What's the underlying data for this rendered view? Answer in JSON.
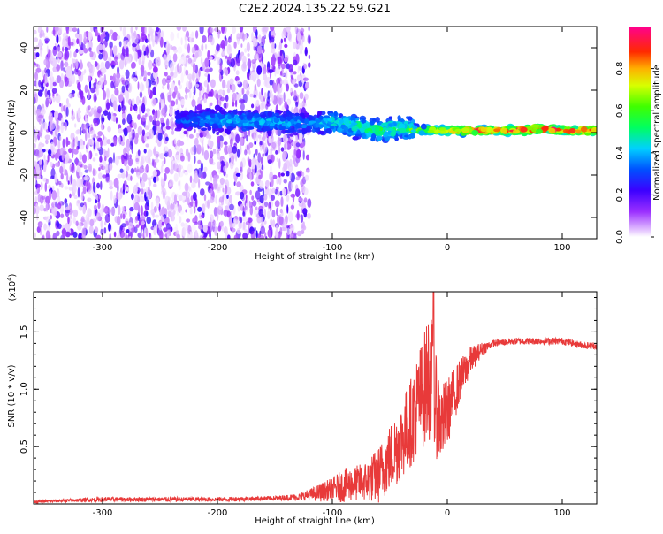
{
  "page_title": "C2E2.2024.135.22.59.G21",
  "chart_data": [
    {
      "type": "heatmap",
      "title": "C2E2.2024.135.22.59.G21",
      "xlabel": "Height of straight line (km)",
      "ylabel": "Frequency (Hz)",
      "xlim": [
        -360,
        130
      ],
      "ylim": [
        -50,
        50
      ],
      "xticks": [
        -300,
        -200,
        -100,
        0,
        100
      ],
      "yticks": [
        -40,
        -20,
        0,
        20,
        40
      ],
      "colorbar": {
        "label": "Normalized spectral amplitude",
        "range": [
          0,
          1
        ],
        "ticks": [
          0.0,
          0.2,
          0.4,
          0.6,
          0.8
        ],
        "colormap": "rainbow (white-violet-blue-cyan-green-yellow-red-magenta)"
      },
      "ridge": {
        "description": "main frequency band vs height",
        "x": [
          -230,
          -200,
          -150,
          -120,
          -100,
          -80,
          -60,
          -40,
          -20,
          0,
          20,
          40,
          60,
          80,
          100,
          130
        ],
        "center_hz": [
          6,
          6,
          5,
          4,
          5,
          3,
          1,
          2,
          1,
          1,
          1,
          1,
          1,
          2,
          1,
          1
        ],
        "peak_amplitude": [
          0.35,
          0.45,
          0.45,
          0.4,
          0.5,
          0.55,
          0.6,
          0.55,
          0.75,
          0.9,
          0.95,
          0.95,
          0.95,
          0.98,
          0.95,
          0.95
        ]
      },
      "noise_region": {
        "x_from": -360,
        "x_to": -130,
        "character": "broadband scattered amplitude across full frequency range"
      }
    },
    {
      "type": "line",
      "xlabel": "Height of straight line (km)",
      "ylabel": "SNR (10 * v/v)",
      "y_multiplier_label": "(x10",
      "y_multiplier_exp": "4",
      "y_multiplier_close": ")",
      "xlim": [
        -360,
        130
      ],
      "ylim": [
        0,
        1.85
      ],
      "xticks": [
        -300,
        -200,
        -100,
        0,
        100
      ],
      "yticks": [
        0.5,
        1.0,
        1.5
      ],
      "ytick_labels": [
        "0.5",
        "1.0",
        "1.5"
      ],
      "color": "#e83a3a",
      "series": [
        {
          "x": [
            -360,
            -300,
            -250,
            -200,
            -150,
            -130,
            -120,
            -110,
            -100,
            -90,
            -80,
            -70,
            -60,
            -50,
            -40,
            -30,
            -25,
            -20,
            -15,
            -10,
            -5,
            0,
            10,
            20,
            30,
            40,
            60,
            80,
            100,
            120,
            130
          ],
          "values": [
            0.02,
            0.04,
            0.04,
            0.04,
            0.05,
            0.06,
            0.08,
            0.1,
            0.13,
            0.16,
            0.18,
            0.2,
            0.25,
            0.4,
            0.55,
            0.75,
            0.9,
            1.0,
            1.15,
            0.85,
            0.7,
            0.8,
            1.05,
            1.25,
            1.35,
            1.4,
            1.42,
            1.42,
            1.42,
            1.38,
            1.38
          ],
          "noise_amplitude": [
            0.01,
            0.02,
            0.02,
            0.02,
            0.02,
            0.03,
            0.05,
            0.08,
            0.1,
            0.15,
            0.15,
            0.18,
            0.25,
            0.3,
            0.35,
            0.4,
            0.45,
            0.5,
            0.6,
            0.45,
            0.35,
            0.3,
            0.2,
            0.12,
            0.06,
            0.03,
            0.03,
            0.03,
            0.03,
            0.03,
            0.03
          ]
        }
      ],
      "annotation_peak": {
        "x": -12,
        "value": 1.85
      }
    }
  ]
}
